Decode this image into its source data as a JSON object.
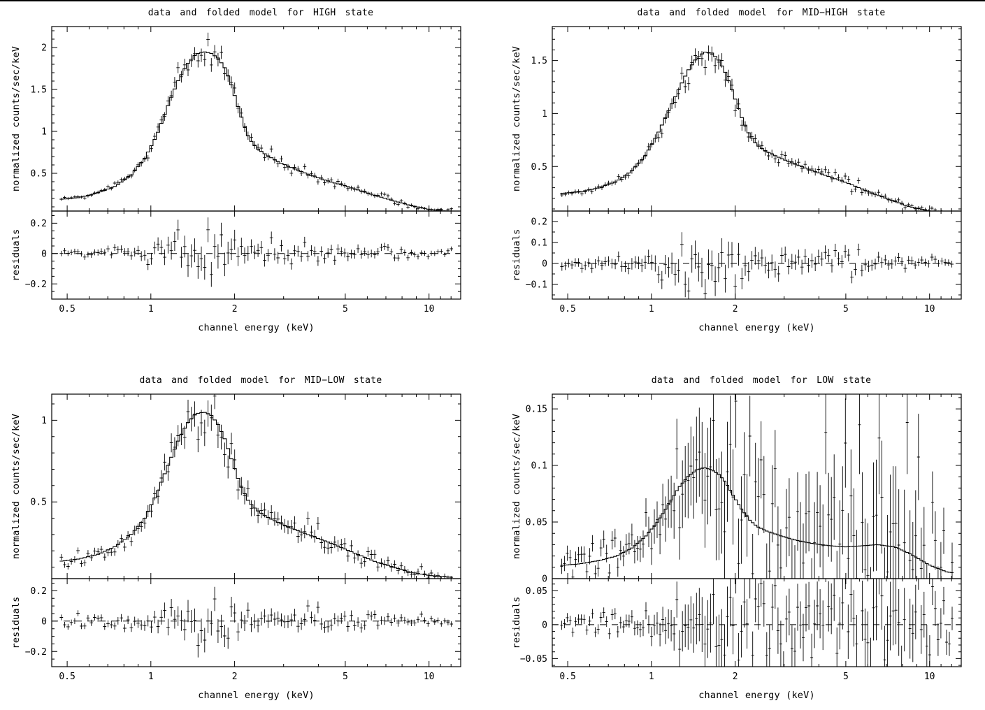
{
  "page": {
    "background": "#ffffff",
    "ink": "#000000"
  },
  "chart_data": [
    {
      "type": "line",
      "title": "data and folded model for HIGH state",
      "xlabel": "channel energy (keV)",
      "ylabel": "normalized counts/sec/keV",
      "resid_ylabel": "residuals",
      "xscale": "log",
      "xlim": [
        0.44,
        13.0
      ],
      "xticks": [
        0.5,
        1,
        2,
        5,
        10
      ],
      "xtick_labels": [
        "0.5",
        "1",
        "2",
        "5",
        "10"
      ],
      "xtick_minor": [
        0.6,
        0.7,
        0.8,
        0.9,
        3,
        4,
        6,
        7,
        8,
        9,
        11,
        12
      ],
      "ylim": [
        0.05,
        2.25
      ],
      "yticks": [
        0.5,
        1,
        1.5,
        2
      ],
      "ytick_labels": [
        "0.5",
        "1",
        "1.5",
        "2"
      ],
      "ytick_minor_step": 0.1,
      "resid_ylim": [
        -0.3,
        0.28
      ],
      "resid_yticks": [
        -0.2,
        0,
        0.2
      ],
      "resid_ytick_labels": [
        "−0.2",
        "0",
        "0.2"
      ],
      "resid_minor_step": 0.05,
      "model_x": [
        0.44,
        0.55,
        0.65,
        0.75,
        0.85,
        0.95,
        1.05,
        1.15,
        1.25,
        1.35,
        1.45,
        1.55,
        1.65,
        1.75,
        1.85,
        1.95,
        2.1,
        2.25,
        2.4,
        2.6,
        2.9,
        3.3,
        3.8,
        4.4,
        5.0,
        5.7,
        6.5,
        7.5,
        8.5,
        10.0,
        11.5,
        13.0
      ],
      "model_y": [
        0.18,
        0.21,
        0.27,
        0.35,
        0.48,
        0.68,
        0.95,
        1.3,
        1.6,
        1.8,
        1.92,
        1.95,
        1.93,
        1.87,
        1.75,
        1.55,
        1.2,
        0.92,
        0.8,
        0.72,
        0.63,
        0.55,
        0.47,
        0.4,
        0.35,
        0.29,
        0.23,
        0.17,
        0.12,
        0.07,
        0.05,
        0.04
      ],
      "data_x0": 0.47,
      "data_x1": 12.2,
      "n_points": 118,
      "seed": 9,
      "err_a": 0.03,
      "err_b": 0.04,
      "err_floor": 0.012
    },
    {
      "type": "line",
      "title": "data and folded model for MID−HIGH state",
      "xlabel": "channel energy (keV)",
      "ylabel": "normalized counts/sec/keV",
      "resid_ylabel": "residuals",
      "xscale": "log",
      "xlim": [
        0.44,
        13.0
      ],
      "xticks": [
        0.5,
        1,
        2,
        5,
        10
      ],
      "xtick_labels": [
        "0.5",
        "1",
        "2",
        "5",
        "10"
      ],
      "xtick_minor": [
        0.6,
        0.7,
        0.8,
        0.9,
        3,
        4,
        6,
        7,
        8,
        9,
        11,
        12
      ],
      "ylim": [
        0.08,
        1.82
      ],
      "yticks": [
        0.5,
        1,
        1.5
      ],
      "ytick_labels": [
        "0.5",
        "1",
        "1.5"
      ],
      "ytick_minor_step": 0.1,
      "resid_ylim": [
        -0.17,
        0.25
      ],
      "resid_yticks": [
        -0.1,
        0,
        0.1,
        0.2
      ],
      "resid_ytick_labels": [
        "−0.1",
        "0",
        "0.1",
        "0.2"
      ],
      "resid_minor_step": 0.05,
      "model_x": [
        0.44,
        0.55,
        0.65,
        0.75,
        0.85,
        0.95,
        1.05,
        1.15,
        1.25,
        1.35,
        1.45,
        1.55,
        1.65,
        1.75,
        1.85,
        1.95,
        2.1,
        2.25,
        2.4,
        2.6,
        2.9,
        3.3,
        3.8,
        4.4,
        5.0,
        5.7,
        6.5,
        7.5,
        8.5,
        10.0,
        11.5,
        13.0
      ],
      "model_y": [
        0.24,
        0.26,
        0.3,
        0.36,
        0.46,
        0.6,
        0.8,
        1.02,
        1.22,
        1.4,
        1.52,
        1.58,
        1.57,
        1.5,
        1.38,
        1.22,
        0.98,
        0.8,
        0.7,
        0.64,
        0.58,
        0.52,
        0.46,
        0.4,
        0.35,
        0.29,
        0.23,
        0.17,
        0.12,
        0.08,
        0.055,
        0.045
      ],
      "data_x0": 0.47,
      "data_x1": 12.2,
      "n_points": 118,
      "seed": 17,
      "err_a": 0.032,
      "err_b": 0.04,
      "err_floor": 0.012
    },
    {
      "type": "line",
      "title": "data and folded model for MID−LOW state",
      "xlabel": "channel energy (keV)",
      "ylabel": "normalized counts/sec/keV",
      "resid_ylabel": "residuals",
      "xscale": "log",
      "xlim": [
        0.44,
        13.0
      ],
      "xticks": [
        0.5,
        1,
        2,
        5,
        10
      ],
      "xtick_labels": [
        "0.5",
        "1",
        "2",
        "5",
        "10"
      ],
      "xtick_minor": [
        0.6,
        0.7,
        0.8,
        0.9,
        3,
        4,
        6,
        7,
        8,
        9,
        11,
        12
      ],
      "ylim": [
        0.03,
        1.16
      ],
      "yticks": [
        0.5,
        1
      ],
      "ytick_labels": [
        "0.5",
        "1"
      ],
      "ytick_minor_step": 0.1,
      "resid_ylim": [
        -0.3,
        0.28
      ],
      "resid_yticks": [
        -0.2,
        0,
        0.2
      ],
      "resid_ytick_labels": [
        "−0.2",
        "0",
        "0.2"
      ],
      "resid_minor_step": 0.05,
      "model_x": [
        0.44,
        0.55,
        0.65,
        0.75,
        0.85,
        0.95,
        1.05,
        1.15,
        1.25,
        1.35,
        1.45,
        1.55,
        1.65,
        1.75,
        1.85,
        1.95,
        2.1,
        2.25,
        2.4,
        2.6,
        2.9,
        3.3,
        3.8,
        4.4,
        5.0,
        5.7,
        6.5,
        7.5,
        8.5,
        10.0,
        11.5,
        13.0
      ],
      "model_y": [
        0.13,
        0.15,
        0.18,
        0.23,
        0.3,
        0.4,
        0.55,
        0.72,
        0.87,
        0.98,
        1.04,
        1.05,
        1.03,
        0.97,
        0.88,
        0.76,
        0.6,
        0.5,
        0.45,
        0.41,
        0.37,
        0.33,
        0.29,
        0.25,
        0.21,
        0.17,
        0.13,
        0.1,
        0.07,
        0.05,
        0.04,
        0.035
      ],
      "data_x0": 0.47,
      "data_x1": 12.2,
      "n_points": 118,
      "seed": 25,
      "err_a": 0.05,
      "err_b": 0.11,
      "err_floor": 0.012
    },
    {
      "type": "line",
      "title": "data and folded model for LOW state",
      "xlabel": "channel energy (keV)",
      "ylabel": "normalized counts/sec/keV",
      "resid_ylabel": "residuals",
      "xscale": "log",
      "xlim": [
        0.44,
        13.0
      ],
      "xticks": [
        0.5,
        1,
        2,
        5,
        10
      ],
      "xtick_labels": [
        "0.5",
        "1",
        "2",
        "5",
        "10"
      ],
      "xtick_minor": [
        0.6,
        0.7,
        0.8,
        0.9,
        3,
        4,
        6,
        7,
        8,
        9,
        11,
        12
      ],
      "ylim": [
        0,
        0.163
      ],
      "yticks": [
        0,
        0.05,
        0.1,
        0.15
      ],
      "ytick_labels": [
        "0",
        "0.05",
        "0.1",
        "0.15"
      ],
      "ytick_minor_step": 0.01,
      "resid_ylim": [
        -0.062,
        0.068
      ],
      "resid_yticks": [
        -0.05,
        0,
        0.05
      ],
      "resid_ytick_labels": [
        "−0.05",
        "0",
        "0.05"
      ],
      "resid_minor_step": 0.01,
      "model_x": [
        0.44,
        0.55,
        0.65,
        0.75,
        0.85,
        0.95,
        1.05,
        1.15,
        1.25,
        1.35,
        1.45,
        1.55,
        1.65,
        1.75,
        1.85,
        1.95,
        2.1,
        2.25,
        2.4,
        2.6,
        2.9,
        3.3,
        3.8,
        4.4,
        5.0,
        5.7,
        6.5,
        7.5,
        8.5,
        10.0,
        11.5,
        13.0
      ],
      "model_y": [
        0.011,
        0.013,
        0.016,
        0.02,
        0.027,
        0.037,
        0.05,
        0.065,
        0.08,
        0.09,
        0.096,
        0.098,
        0.096,
        0.092,
        0.085,
        0.075,
        0.062,
        0.052,
        0.046,
        0.042,
        0.038,
        0.034,
        0.031,
        0.029,
        0.028,
        0.029,
        0.03,
        0.028,
        0.022,
        0.012,
        0.006,
        0.004
      ],
      "data_x0": 0.47,
      "data_x1": 12.2,
      "n_points": 140,
      "seed": 33,
      "err_a": 0.06,
      "err_b": 2.2,
      "err_floor": 0.006
    }
  ]
}
